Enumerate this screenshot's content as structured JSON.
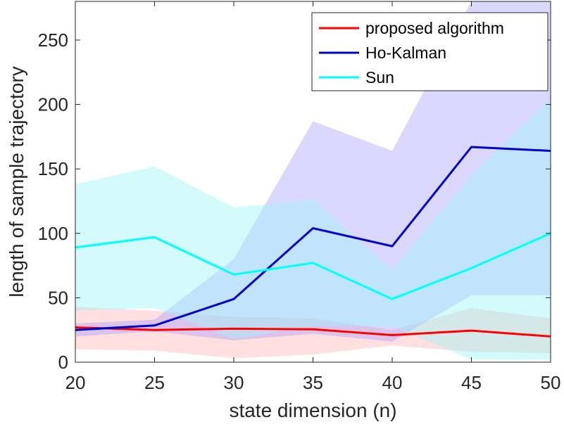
{
  "chart_data": {
    "type": "line",
    "title": "",
    "xlabel": "state dimension (n)",
    "ylabel": "length of sample trajectory",
    "xlim": [
      20,
      50
    ],
    "ylim": [
      0,
      280
    ],
    "xticks": [
      20,
      25,
      30,
      35,
      40,
      45,
      50
    ],
    "yticks": [
      0,
      50,
      100,
      150,
      200,
      250
    ],
    "x": [
      20,
      25,
      30,
      35,
      40,
      45,
      50
    ],
    "legend_position": "top-right",
    "series": [
      {
        "name": "proposed algorithm",
        "color": "#ff0000",
        "band_color": "#ffb3b3",
        "values": [
          27,
          25,
          26,
          25.5,
          21,
          24.5,
          20
        ],
        "upper": [
          43,
          40,
          35,
          34,
          25,
          42,
          34
        ],
        "lower": [
          10,
          9,
          3,
          6,
          13,
          8,
          7
        ]
      },
      {
        "name": "Ho-Kalman",
        "color": "#0000cc",
        "band_color": "#aaa0ff",
        "values": [
          25,
          28.5,
          49,
          104,
          90,
          167,
          164
        ],
        "upper": [
          30,
          33,
          80,
          187,
          164,
          280,
          280
        ],
        "lower": [
          20,
          24,
          17,
          22,
          16,
          52,
          52
        ]
      },
      {
        "name": "Sun",
        "color": "#00ffff",
        "band_color": "#99f5f5",
        "values": [
          89,
          97,
          68,
          77,
          49,
          73,
          100
        ],
        "upper": [
          138,
          152,
          120,
          126,
          72,
          145,
          205
        ],
        "lower": [
          40,
          42,
          18,
          28,
          28,
          2,
          2
        ]
      }
    ]
  }
}
